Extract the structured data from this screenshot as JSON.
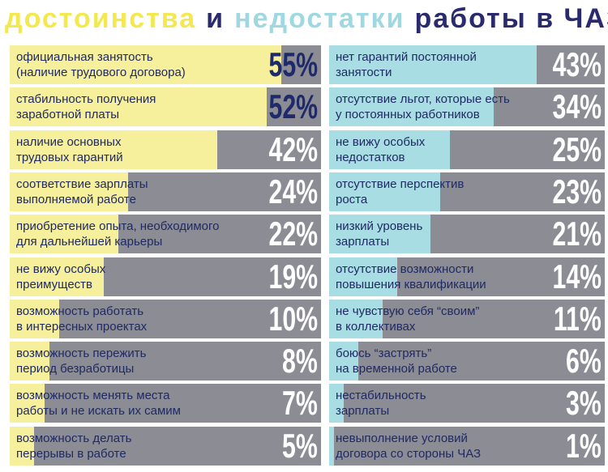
{
  "title_parts": [
    "достоинства",
    "и",
    "недостатки",
    "работы в ЧАЗ"
  ],
  "chart_data": [
    {
      "type": "bar",
      "orientation": "horizontal",
      "color": "#f6ef9c",
      "xlim": [
        0,
        63
      ],
      "categories": [
        "официальная занятость\n(наличие трудового договора)",
        "стабильность получения\nзаработной платы",
        "наличие основных\nтрудовых гарантий",
        "соответствие зарплаты\nвыполняемой работе",
        "приобретение опыта, необходимого\nдля дальнейшей карьеры",
        "не вижу особых\nпреимуществ",
        "возможность работать\nв интересных проектах",
        "возможность пережить\nпериод безработицы",
        "возможность менять места\nработы и не искать их самим",
        "возможность делать\nперерывы в работе"
      ],
      "values": [
        55,
        52,
        42,
        24,
        22,
        19,
        10,
        8,
        7,
        5
      ],
      "value_labels": [
        "55%",
        "52%",
        "42%",
        "24%",
        "22%",
        "19%",
        "10%",
        "8%",
        "7%",
        "5%"
      ]
    },
    {
      "type": "bar",
      "orientation": "horizontal",
      "color": "#a9dde4",
      "xlim": [
        0,
        57
      ],
      "categories": [
        "нет гарантий постоянной\nзанятости",
        "отсутствие льгот, которые есть\nу постоянных работников",
        "не вижу особых\nнедостатков",
        "отсутствие перспектив\nроста",
        "низкий уровень\nзарплаты",
        "отсутствие возможности\nповышения квалификации",
        "не чувствую себя “своим”\nв коллективах",
        "боюсь “застрять”\nна временной работе",
        "нестабильность\nзарплаты",
        "невыполнение условий\nдоговора со стороны ЧАЗ"
      ],
      "values": [
        43,
        34,
        25,
        23,
        21,
        14,
        11,
        6,
        3,
        1
      ],
      "value_labels": [
        "43%",
        "34%",
        "25%",
        "23%",
        "21%",
        "14%",
        "11%",
        "6%",
        "3%",
        "1%"
      ]
    }
  ]
}
